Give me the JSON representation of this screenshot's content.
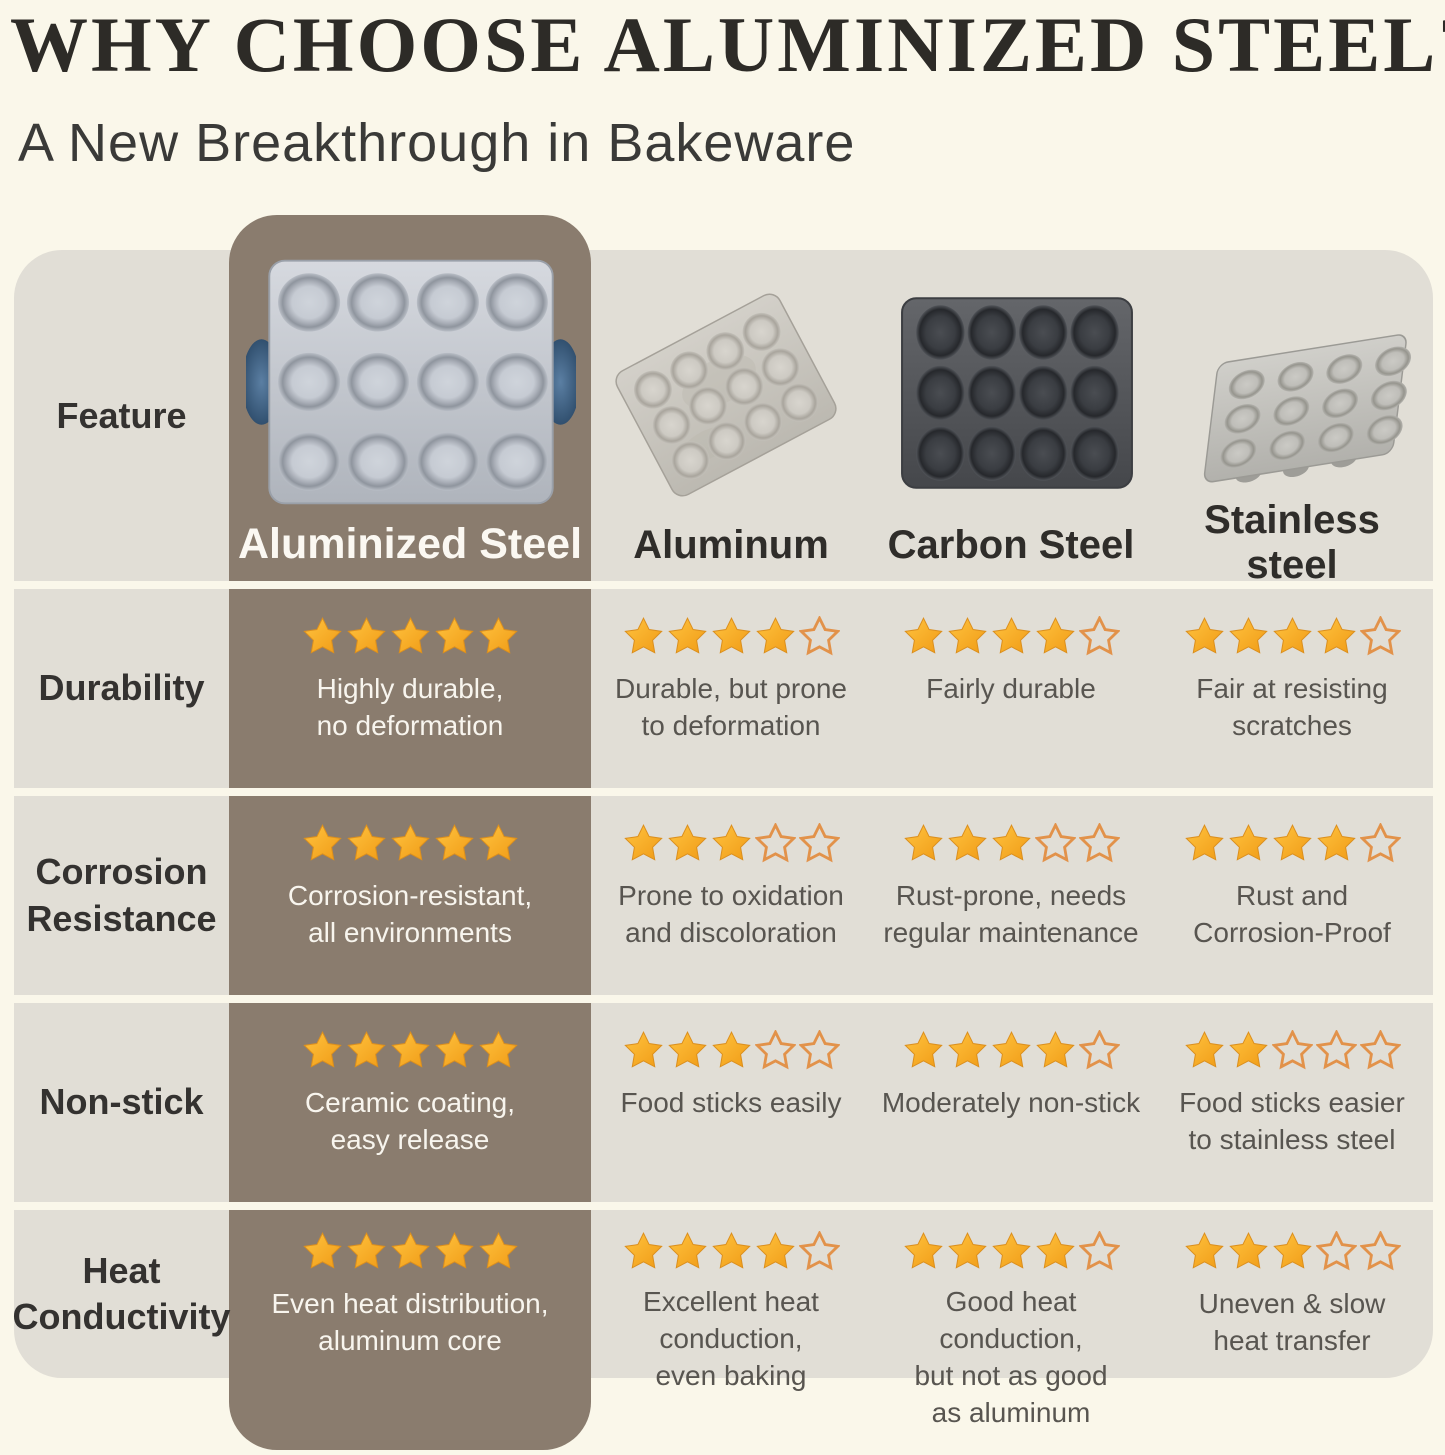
{
  "title": "WHY CHOOSE ALUMINIZED STEEL?",
  "subtitle": "A New Breakthrough in Bakeware",
  "chart_data": {
    "type": "table",
    "feature_column_header": "Feature",
    "rating_scale_max": 5,
    "columns": [
      {
        "label": "Aluminized Steel",
        "highlighted": true,
        "image": "aluminized-steel-muffin-pan"
      },
      {
        "label": "Aluminum",
        "highlighted": false,
        "image": "aluminum-muffin-pan"
      },
      {
        "label": "Carbon Steel",
        "highlighted": false,
        "image": "carbon-steel-muffin-pan"
      },
      {
        "label": "Stainless\nsteel",
        "highlighted": false,
        "image": "stainless-steel-muffin-pan"
      }
    ],
    "rows": [
      {
        "feature": "Durability",
        "cells": [
          {
            "stars": 5,
            "text": "Highly durable,\nno deformation"
          },
          {
            "stars": 4,
            "text": "Durable, but prone\nto deformation"
          },
          {
            "stars": 4,
            "text": "Fairly durable"
          },
          {
            "stars": 4,
            "text": "Fair at resisting\nscratches"
          }
        ]
      },
      {
        "feature": "Corrosion\nResistance",
        "cells": [
          {
            "stars": 5,
            "text": "Corrosion-resistant,\nall environments"
          },
          {
            "stars": 3,
            "text": "Prone to oxidation\nand discoloration"
          },
          {
            "stars": 3,
            "text": "Rust-prone, needs\nregular maintenance"
          },
          {
            "stars": 4,
            "text": "Rust and\nCorrosion-Proof"
          }
        ]
      },
      {
        "feature": "Non-stick",
        "cells": [
          {
            "stars": 5,
            "text": "Ceramic coating,\neasy release"
          },
          {
            "stars": 3,
            "text": "Food sticks easily"
          },
          {
            "stars": 4,
            "text": "Moderately non-stick"
          },
          {
            "stars": 2,
            "text": "Food sticks easier\nto stainless steel"
          }
        ]
      },
      {
        "feature": "Heat\nConductivity",
        "cells": [
          {
            "stars": 5,
            "text": "Even heat distribution,\naluminum core"
          },
          {
            "stars": 4,
            "text": "Excellent heat\nconduction,\neven baking"
          },
          {
            "stars": 4,
            "text": "Good heat conduction,\nbut not as good\nas aluminum"
          },
          {
            "stars": 3,
            "text": "Uneven & slow\nheat transfer"
          }
        ]
      }
    ]
  },
  "colors": {
    "background": "#FAF7EA",
    "row_band": "#E1DED6",
    "highlight_column": "#8A7C6E",
    "star_filled": "#F6A72E",
    "star_empty_outline": "#E2924A",
    "title_text": "#2D2B27",
    "body_text": "#585550",
    "highlight_text": "#F8F5EE",
    "handle_blue": "#3B5E80"
  }
}
